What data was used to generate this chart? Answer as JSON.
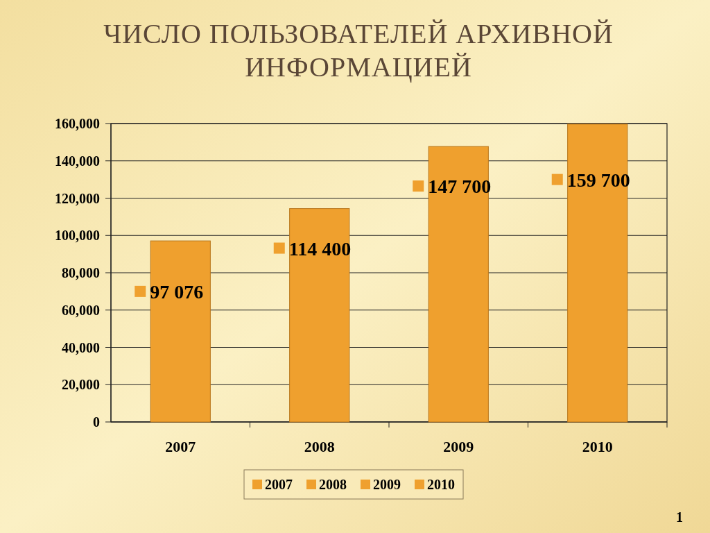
{
  "chart_data": {
    "type": "bar",
    "title": "ЧИСЛО ПОЛЬЗОВАТЕЛЕЙ АРХИВНОЙ ИНФОРМАЦИЕЙ",
    "categories": [
      "2007",
      "2008",
      "2009",
      "2010"
    ],
    "values": [
      97076,
      114400,
      147700,
      159700
    ],
    "colors": [
      "#efa02e",
      "#efa02e",
      "#efa02e",
      "#efa02e"
    ],
    "value_labels": [
      "97 076",
      "114 400",
      "147 700",
      "159 700"
    ],
    "ylim": [
      0,
      160000
    ],
    "yticks": [
      0,
      {
        "value": 20000,
        "label": "20,000"
      },
      {
        "value": 40000,
        "label": "40,000"
      },
      {
        "value": 60000,
        "label": "60,000"
      },
      {
        "value": 80000,
        "label": "80,000"
      },
      {
        "value": 100000,
        "label": "100,000"
      },
      {
        "value": 120000,
        "label": "120,000"
      },
      {
        "value": 140000,
        "label": "140,000"
      },
      {
        "value": 160000,
        "label": "160,000"
      }
    ],
    "grid": "y",
    "annotations": [
      "1"
    ]
  }
}
